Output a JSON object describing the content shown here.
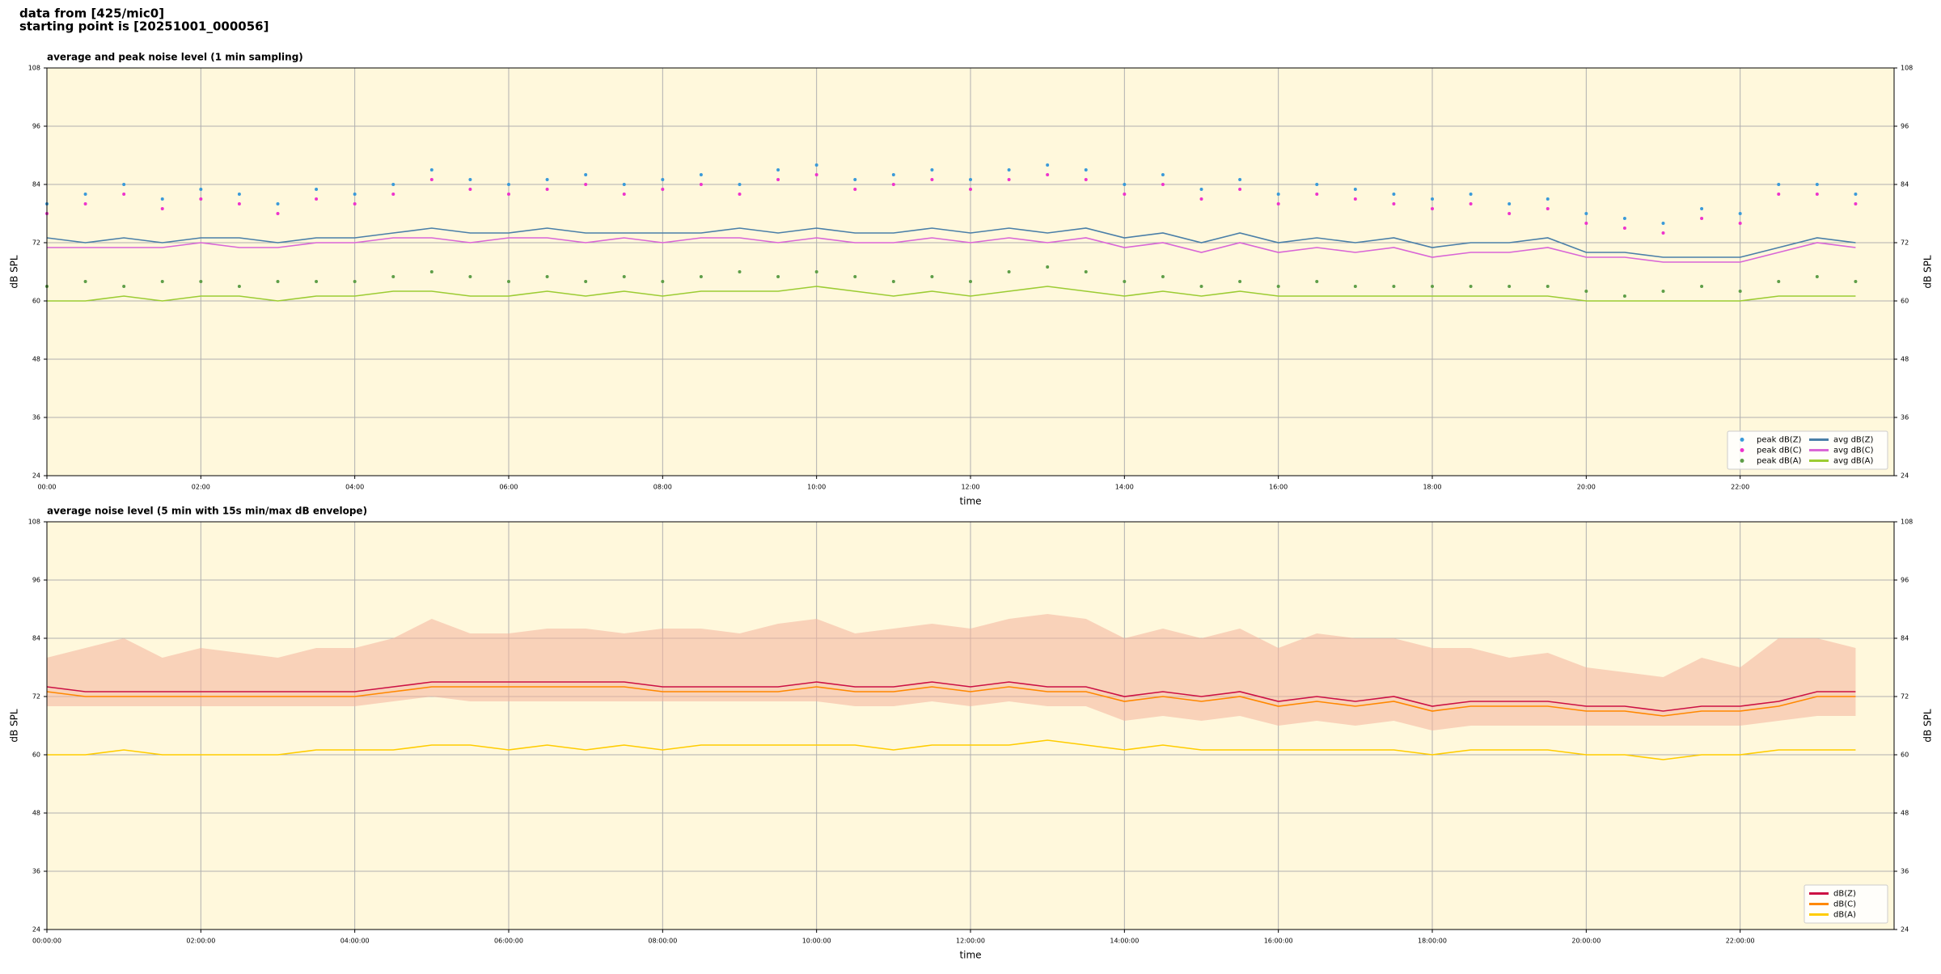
{
  "header": {
    "line1": "data from [425/mic0]",
    "line2": "starting point is [20251001_000056]"
  },
  "chart_data": [
    {
      "type": "line",
      "title": "average and peak noise level (1 min sampling)",
      "x_label": "time",
      "y_label": "dB SPL",
      "xlim": [
        0,
        24
      ],
      "ylim": [
        24,
        108
      ],
      "yticks": [
        24,
        36,
        48,
        60,
        72,
        84,
        96,
        108
      ],
      "xticks": [
        {
          "value": 0,
          "label": "00:00"
        },
        {
          "value": 2,
          "label": "02:00"
        },
        {
          "value": 4,
          "label": "04:00"
        },
        {
          "value": 6,
          "label": "06:00"
        },
        {
          "value": 8,
          "label": "08:00"
        },
        {
          "value": 10,
          "label": "10:00"
        },
        {
          "value": 12,
          "label": "12:00"
        },
        {
          "value": 14,
          "label": "14:00"
        },
        {
          "value": 16,
          "label": "16:00"
        },
        {
          "value": 18,
          "label": "18:00"
        },
        {
          "value": 20,
          "label": "20:00"
        },
        {
          "value": 22,
          "label": "22:00"
        }
      ],
      "grid": true,
      "legend": "lower right",
      "legend_columns": 2,
      "background": "#fff8dc",
      "x": [
        0,
        0.5,
        1,
        1.5,
        2,
        2.5,
        3,
        3.5,
        4,
        4.5,
        5,
        5.5,
        6,
        6.5,
        7,
        7.5,
        8,
        8.5,
        9,
        9.5,
        10,
        10.5,
        11,
        11.5,
        12,
        12.5,
        13,
        13.5,
        14,
        14.5,
        15,
        15.5,
        16,
        16.5,
        17,
        17.5,
        18,
        18.5,
        19,
        19.5,
        20,
        20.5,
        21,
        21.5,
        22,
        22.5,
        23,
        23.5
      ],
      "series": [
        {
          "name": "peak dB(Z)",
          "type": "scatter",
          "color": "#3a9ad9",
          "values": [
            80,
            82,
            84,
            81,
            83,
            82,
            80,
            83,
            82,
            84,
            87,
            85,
            84,
            85,
            86,
            84,
            85,
            86,
            84,
            87,
            88,
            85,
            86,
            87,
            85,
            87,
            88,
            87,
            84,
            86,
            83,
            85,
            82,
            84,
            83,
            82,
            81,
            82,
            80,
            81,
            78,
            77,
            76,
            79,
            78,
            84,
            84,
            82
          ]
        },
        {
          "name": "peak dB(C)",
          "type": "scatter",
          "color": "#ee33cc",
          "values": [
            78,
            80,
            82,
            79,
            81,
            80,
            78,
            81,
            80,
            82,
            85,
            83,
            82,
            83,
            84,
            82,
            83,
            84,
            82,
            85,
            86,
            83,
            84,
            85,
            83,
            85,
            86,
            85,
            82,
            84,
            81,
            83,
            80,
            82,
            81,
            80,
            79,
            80,
            78,
            79,
            76,
            75,
            74,
            77,
            76,
            82,
            82,
            80
          ]
        },
        {
          "name": "peak dB(A)",
          "type": "scatter",
          "color": "#5e9e48",
          "values": [
            63,
            64,
            63,
            64,
            64,
            63,
            64,
            64,
            64,
            65,
            66,
            65,
            64,
            65,
            64,
            65,
            64,
            65,
            66,
            65,
            66,
            65,
            64,
            65,
            64,
            66,
            67,
            66,
            64,
            65,
            63,
            64,
            63,
            64,
            63,
            63,
            63,
            63,
            63,
            63,
            62,
            61,
            62,
            63,
            62,
            64,
            65,
            64
          ]
        },
        {
          "name": "avg dB(Z)",
          "type": "line",
          "color": "#4a7fa8",
          "values": [
            73,
            72,
            73,
            72,
            73,
            73,
            72,
            73,
            73,
            74,
            75,
            74,
            74,
            75,
            74,
            74,
            74,
            74,
            75,
            74,
            75,
            74,
            74,
            75,
            74,
            75,
            74,
            75,
            73,
            74,
            72,
            74,
            72,
            73,
            72,
            73,
            71,
            72,
            72,
            73,
            70,
            70,
            69,
            69,
            69,
            71,
            73,
            72
          ]
        },
        {
          "name": "avg dB(C)",
          "type": "line",
          "color": "#d966d6",
          "values": [
            71,
            71,
            71,
            71,
            72,
            71,
            71,
            72,
            72,
            73,
            73,
            72,
            73,
            73,
            72,
            73,
            72,
            73,
            73,
            72,
            73,
            72,
            72,
            73,
            72,
            73,
            72,
            73,
            71,
            72,
            70,
            72,
            70,
            71,
            70,
            71,
            69,
            70,
            70,
            71,
            69,
            69,
            68,
            68,
            68,
            70,
            72,
            71
          ]
        },
        {
          "name": "avg dB(A)",
          "type": "line",
          "color": "#9ccc33",
          "values": [
            60,
            60,
            61,
            60,
            61,
            61,
            60,
            61,
            61,
            62,
            62,
            61,
            61,
            62,
            61,
            62,
            61,
            62,
            62,
            62,
            63,
            62,
            61,
            62,
            61,
            62,
            63,
            62,
            61,
            62,
            61,
            62,
            61,
            61,
            61,
            61,
            61,
            61,
            61,
            61,
            60,
            60,
            60,
            60,
            60,
            61,
            61,
            61
          ]
        }
      ]
    },
    {
      "type": "line",
      "title": "average noise level (5 min with 15s min/max dB envelope)",
      "x_label": "time",
      "y_label": "dB SPL",
      "xlim": [
        0,
        24
      ],
      "ylim": [
        24,
        108
      ],
      "yticks": [
        24,
        36,
        48,
        60,
        72,
        84,
        96,
        108
      ],
      "xticks": [
        {
          "value": 0,
          "label": "00:00:00"
        },
        {
          "value": 2,
          "label": "02:00:00"
        },
        {
          "value": 4,
          "label": "04:00:00"
        },
        {
          "value": 6,
          "label": "06:00:00"
        },
        {
          "value": 8,
          "label": "08:00:00"
        },
        {
          "value": 10,
          "label": "10:00:00"
        },
        {
          "value": 12,
          "label": "12:00:00"
        },
        {
          "value": 14,
          "label": "14:00:00"
        },
        {
          "value": 16,
          "label": "16:00:00"
        },
        {
          "value": 18,
          "label": "18:00:00"
        },
        {
          "value": 20,
          "label": "20:00:00"
        },
        {
          "value": 22,
          "label": "22:00:00"
        }
      ],
      "grid": true,
      "legend": "lower right",
      "legend_columns": 1,
      "background": "#fff8dc",
      "x": [
        0,
        0.5,
        1,
        1.5,
        2,
        2.5,
        3,
        3.5,
        4,
        4.5,
        5,
        5.5,
        6,
        6.5,
        7,
        7.5,
        8,
        8.5,
        9,
        9.5,
        10,
        10.5,
        11,
        11.5,
        12,
        12.5,
        13,
        13.5,
        14,
        14.5,
        15,
        15.5,
        16,
        16.5,
        17,
        17.5,
        18,
        18.5,
        19,
        19.5,
        20,
        20.5,
        21,
        21.5,
        22,
        22.5,
        23,
        23.5
      ],
      "envelope": {
        "color": "#f4b39c",
        "low": [
          70,
          70,
          70,
          70,
          70,
          70,
          70,
          70,
          70,
          71,
          72,
          71,
          71,
          71,
          71,
          71,
          71,
          71,
          71,
          71,
          71,
          70,
          70,
          71,
          70,
          71,
          70,
          70,
          67,
          68,
          67,
          68,
          66,
          67,
          66,
          67,
          65,
          66,
          66,
          66,
          66,
          66,
          66,
          66,
          66,
          67,
          68,
          68
        ],
        "high": [
          80,
          82,
          84,
          80,
          82,
          81,
          80,
          82,
          82,
          84,
          88,
          85,
          85,
          86,
          86,
          85,
          86,
          86,
          85,
          87,
          88,
          85,
          86,
          87,
          86,
          88,
          89,
          88,
          84,
          86,
          84,
          86,
          82,
          85,
          84,
          84,
          82,
          82,
          80,
          81,
          78,
          77,
          76,
          80,
          78,
          84,
          84,
          82
        ]
      },
      "series": [
        {
          "name": "dB(Z)",
          "type": "line",
          "color": "#cc1144",
          "values": [
            74,
            73,
            73,
            73,
            73,
            73,
            73,
            73,
            73,
            74,
            75,
            75,
            75,
            75,
            75,
            75,
            74,
            74,
            74,
            74,
            75,
            74,
            74,
            75,
            74,
            75,
            74,
            74,
            72,
            73,
            72,
            73,
            71,
            72,
            71,
            72,
            70,
            71,
            71,
            71,
            70,
            70,
            69,
            70,
            70,
            71,
            73,
            73
          ]
        },
        {
          "name": "dB(C)",
          "type": "line",
          "color": "#ff8800",
          "values": [
            73,
            72,
            72,
            72,
            72,
            72,
            72,
            72,
            72,
            73,
            74,
            74,
            74,
            74,
            74,
            74,
            73,
            73,
            73,
            73,
            74,
            73,
            73,
            74,
            73,
            74,
            73,
            73,
            71,
            72,
            71,
            72,
            70,
            71,
            70,
            71,
            69,
            70,
            70,
            70,
            69,
            69,
            68,
            69,
            69,
            70,
            72,
            72
          ]
        },
        {
          "name": "dB(A)",
          "type": "line",
          "color": "#ffcc00",
          "values": [
            60,
            60,
            61,
            60,
            60,
            60,
            60,
            61,
            61,
            61,
            62,
            62,
            61,
            62,
            61,
            62,
            61,
            62,
            62,
            62,
            62,
            62,
            61,
            62,
            62,
            62,
            63,
            62,
            61,
            62,
            61,
            61,
            61,
            61,
            61,
            61,
            60,
            61,
            61,
            61,
            60,
            60,
            59,
            60,
            60,
            61,
            61,
            61
          ]
        }
      ]
    }
  ]
}
